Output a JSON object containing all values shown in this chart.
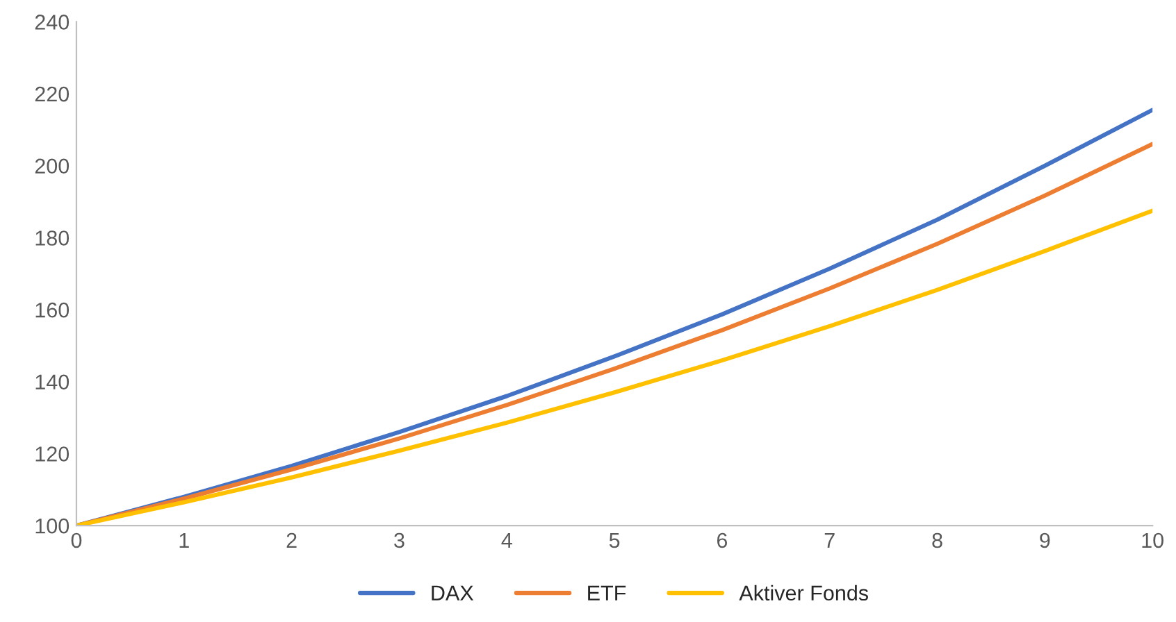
{
  "chart_data": {
    "type": "line",
    "x": [
      0,
      1,
      2,
      3,
      4,
      5,
      6,
      7,
      8,
      9,
      10
    ],
    "series": [
      {
        "name": "DAX",
        "color": "#4472c4",
        "values": [
          100,
          108,
          116.6,
          126,
          136,
          147,
          158.7,
          171.4,
          185,
          200,
          215.5
        ]
      },
      {
        "name": "ETF",
        "color": "#ed7d31",
        "values": [
          100,
          107.5,
          115.6,
          124.2,
          133.5,
          143.6,
          154.3,
          165.9,
          178.3,
          191.7,
          206
        ]
      },
      {
        "name": "Aktiver Fonds",
        "color": "#ffc000",
        "values": [
          100,
          106.5,
          113.4,
          120.8,
          128.6,
          137,
          145.9,
          155.4,
          165.5,
          176.3,
          187.5
        ]
      }
    ],
    "xlim": [
      0,
      10
    ],
    "xticks": [
      0,
      1,
      2,
      3,
      4,
      5,
      6,
      7,
      8,
      9,
      10
    ],
    "ylim": [
      100,
      240
    ],
    "yticks": [
      100,
      120,
      140,
      160,
      180,
      200,
      220,
      240
    ],
    "grid": false,
    "legend": "bottom",
    "marker": "none",
    "line_style": "solid"
  }
}
